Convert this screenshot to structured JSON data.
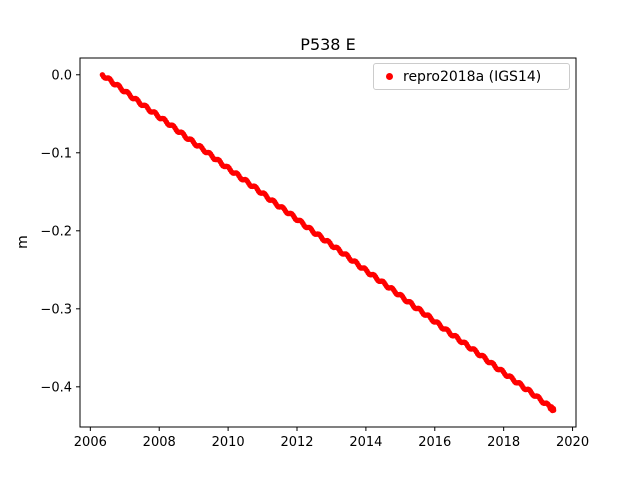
{
  "chart": {
    "title": "P538 E",
    "ylabel": "m",
    "legend": {
      "label": "repro2018a (IGS14)",
      "marker_color": "#ff0000",
      "marker_icon": "dot-marker-icon"
    }
  },
  "chart_data": {
    "type": "scatter",
    "title": "P538 E",
    "xlabel": "",
    "ylabel": "m",
    "grid": false,
    "legend_position": "upper right",
    "xlim": [
      2005.7,
      2020.1
    ],
    "ylim": [
      -0.4515,
      0.0215
    ],
    "xticks": [
      2006,
      2008,
      2010,
      2012,
      2014,
      2016,
      2018,
      2020
    ],
    "yticks": [
      0.0,
      -0.1,
      -0.2,
      -0.3,
      -0.4
    ],
    "series": [
      {
        "name": "repro2018a (IGS14)",
        "color": "#ff0000",
        "trend": "linear, approx -0.033 m/yr",
        "x": [
          2006.35,
          2006.85,
          2007.35,
          2007.85,
          2008.35,
          2008.85,
          2009.35,
          2009.85,
          2010.35,
          2010.85,
          2011.35,
          2011.85,
          2012.35,
          2012.85,
          2013.35,
          2013.85,
          2014.35,
          2014.85,
          2015.35,
          2015.85,
          2016.35,
          2016.85,
          2017.35,
          2017.85,
          2018.35,
          2018.85,
          2019.35,
          2019.45
        ],
        "y": [
          0.0,
          -0.016,
          -0.033,
          -0.049,
          -0.065,
          -0.082,
          -0.098,
          -0.115,
          -0.131,
          -0.147,
          -0.164,
          -0.18,
          -0.197,
          -0.213,
          -0.229,
          -0.246,
          -0.262,
          -0.278,
          -0.295,
          -0.311,
          -0.328,
          -0.344,
          -0.36,
          -0.377,
          -0.393,
          -0.409,
          -0.426,
          -0.43
        ]
      }
    ]
  }
}
